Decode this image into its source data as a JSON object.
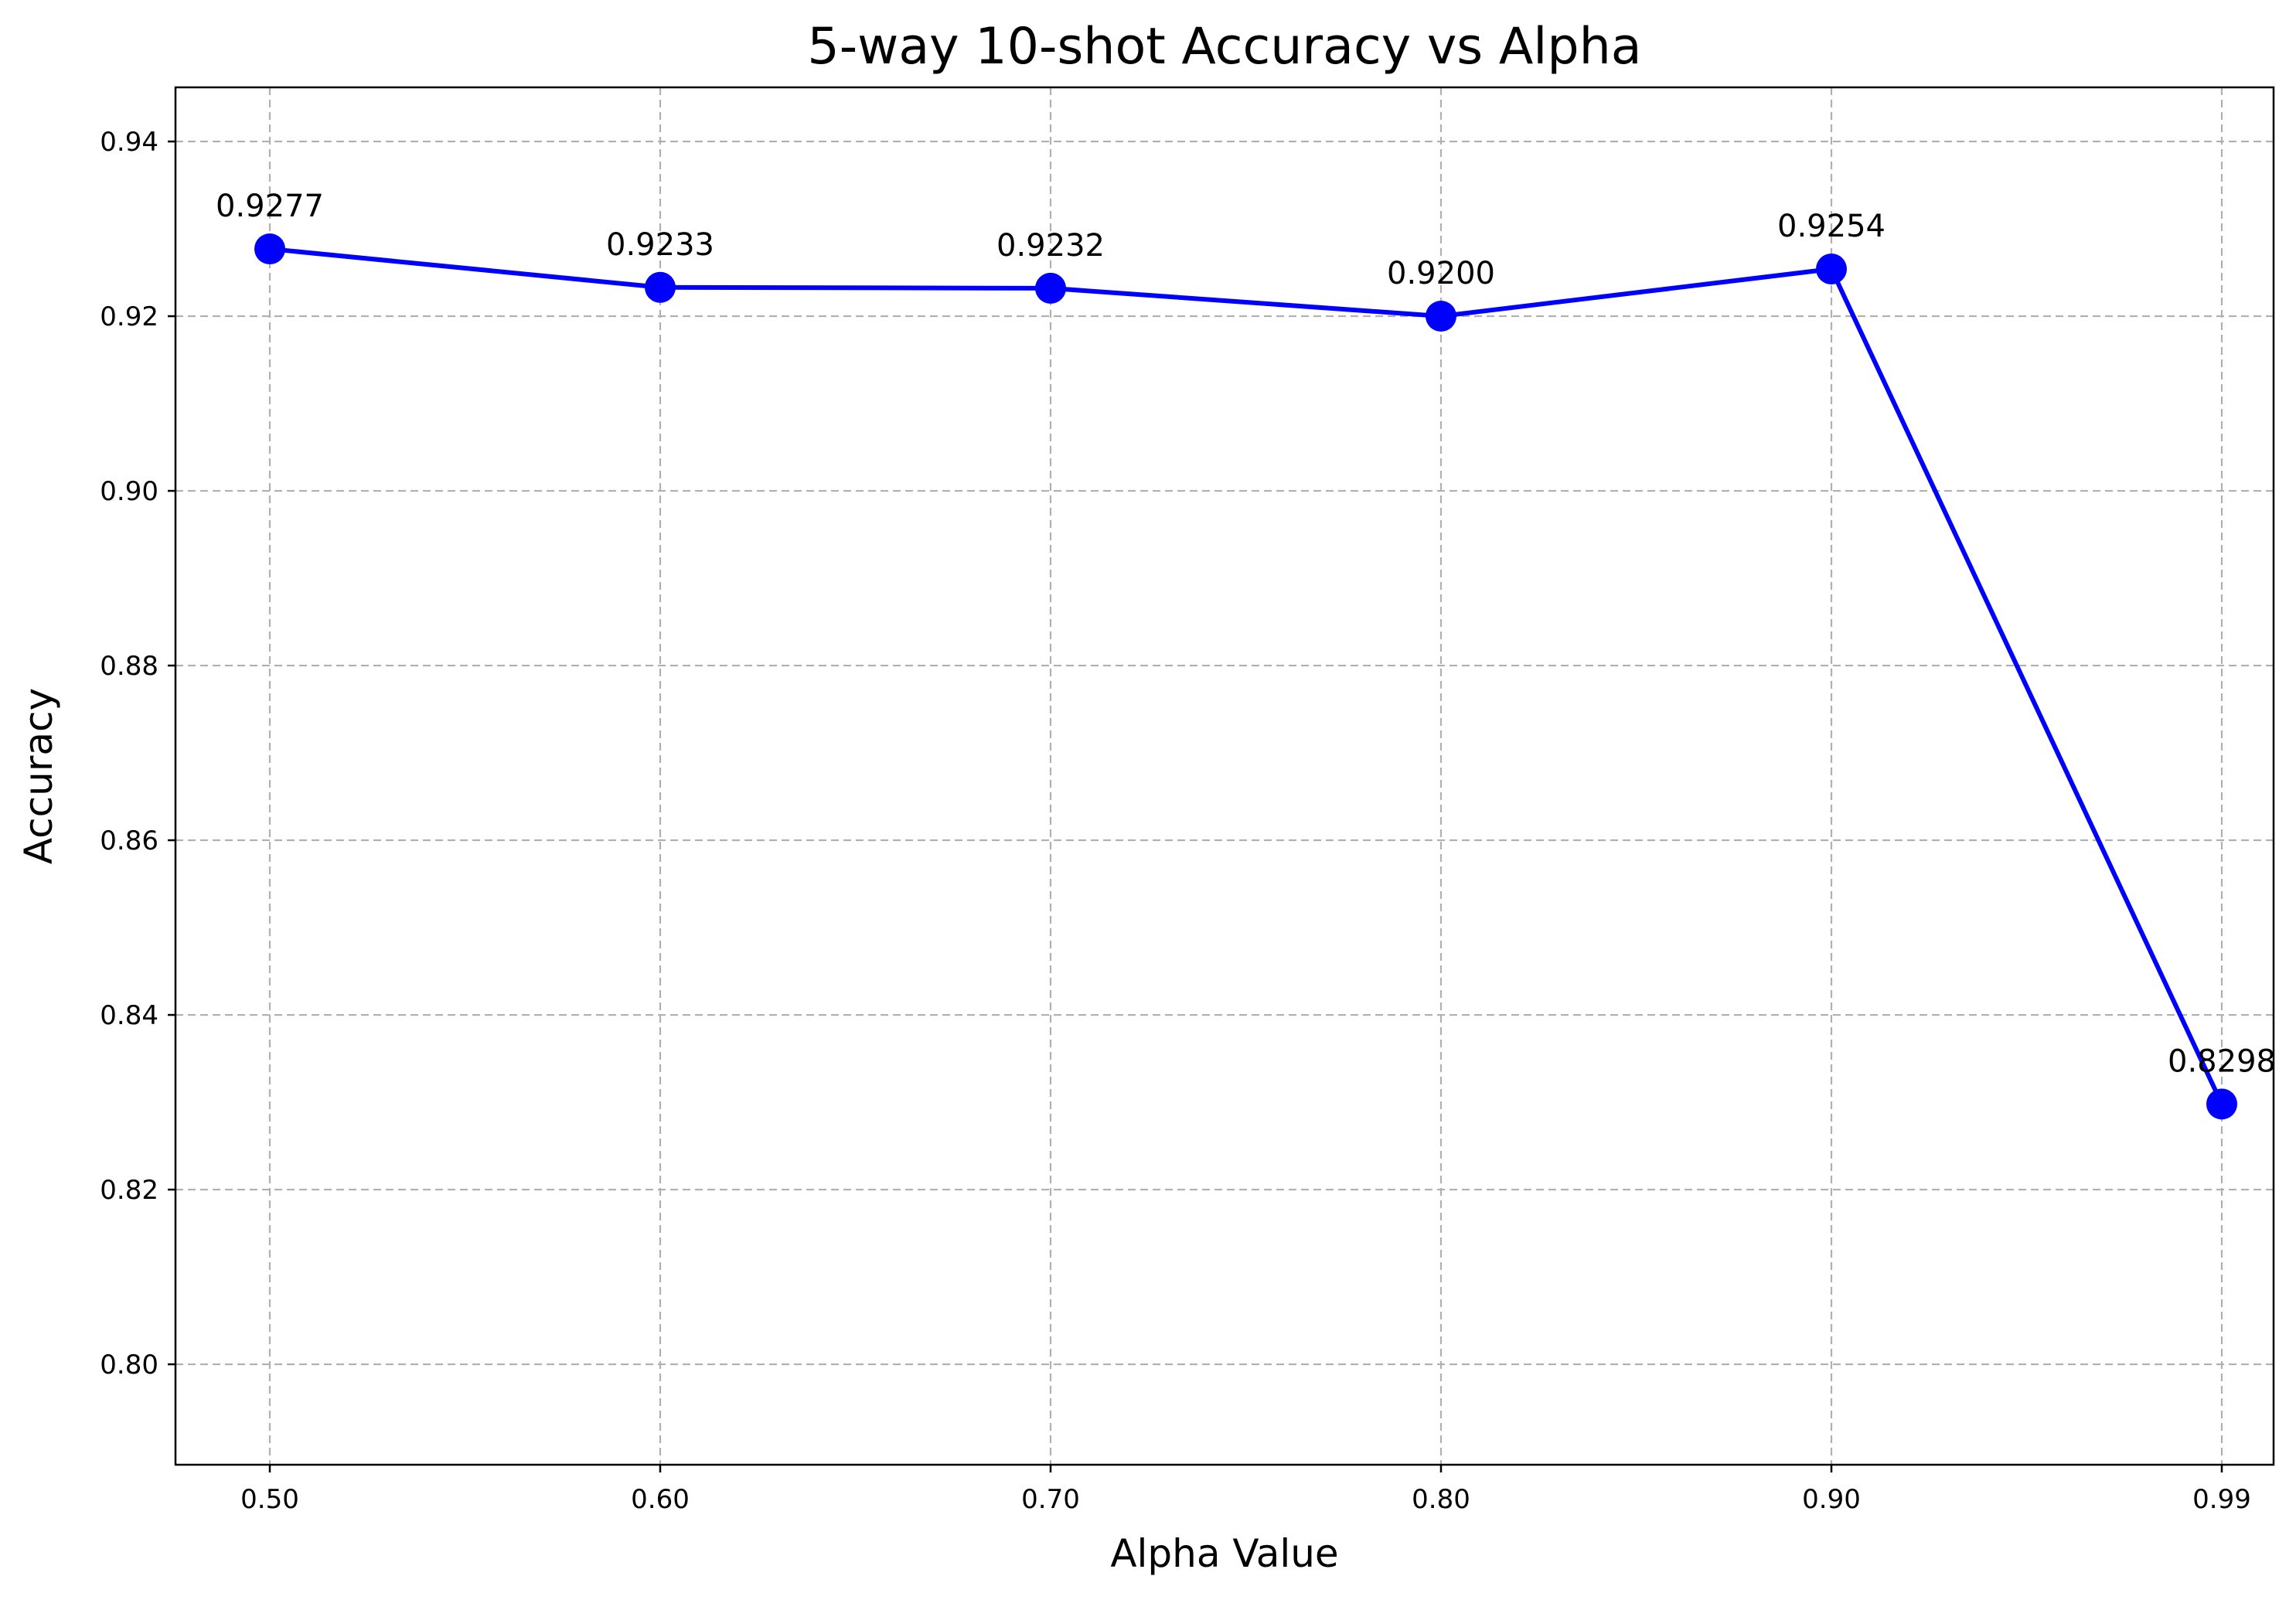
{
  "chart_data": {
    "type": "line",
    "title": "5-way 10-shot Accuracy vs Alpha",
    "xlabel": "Alpha Value",
    "ylabel": "Accuracy",
    "categories": [
      "0.50",
      "0.60",
      "0.70",
      "0.80",
      "0.90",
      "0.99"
    ],
    "x": [
      0.5,
      0.6,
      0.7,
      0.8,
      0.9,
      0.99
    ],
    "series": [
      {
        "values": [
          0.9277,
          0.9233,
          0.9232,
          0.92,
          0.9254,
          0.8298
        ],
        "data_labels": [
          "0.9277",
          "0.9233",
          "0.9232",
          "0.9200",
          "0.9254",
          "0.8298"
        ],
        "color": "#0000ff",
        "marker": "circle"
      }
    ],
    "yticks": [
      0.8,
      0.82,
      0.84,
      0.86,
      0.88,
      0.9,
      0.92,
      0.94
    ],
    "ytick_labels": [
      "0.80",
      "0.82",
      "0.84",
      "0.86",
      "0.88",
      "0.90",
      "0.92",
      "0.94"
    ],
    "ylim": [
      0.7885,
      0.9462
    ],
    "grid": true,
    "grid_style": "dashed"
  }
}
